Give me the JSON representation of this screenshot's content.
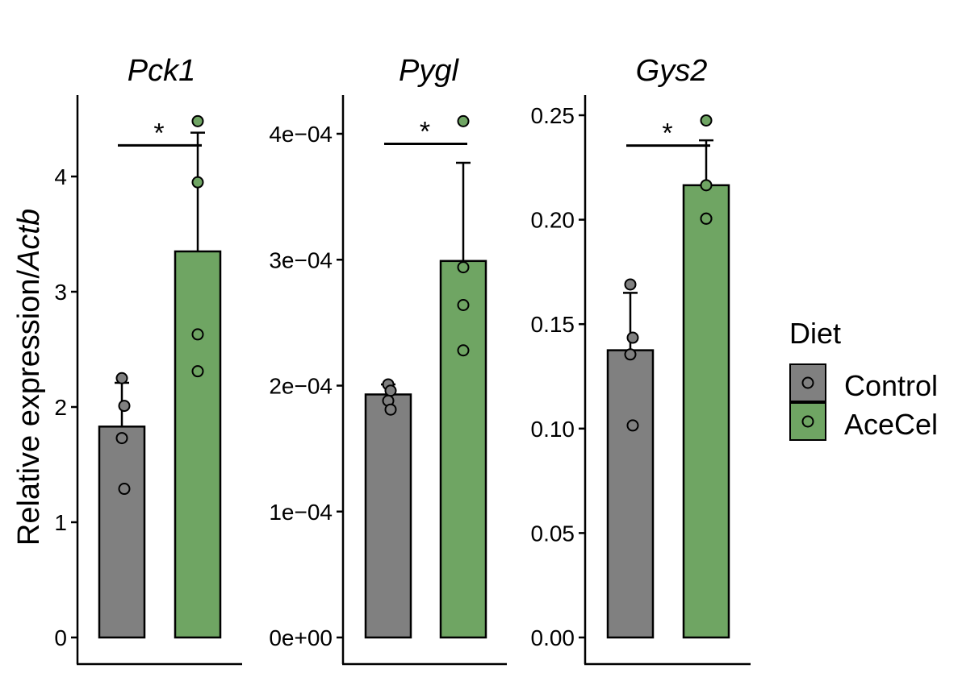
{
  "y_axis_label": "Relative expression/",
  "y_axis_label_italic": "Actb",
  "legend": {
    "title": "Diet",
    "entries": [
      {
        "label": "Control",
        "color": "#808080"
      },
      {
        "label": "AceCel",
        "color": "#6fa563"
      }
    ]
  },
  "significance_label": "*",
  "chart_data": [
    {
      "type": "bar",
      "title": "Pck1",
      "categories": [
        "Control",
        "AceCel"
      ],
      "ylim": [
        0,
        4.6
      ],
      "ticks": [
        0,
        1,
        2,
        3,
        4
      ],
      "tick_labels": [
        "0",
        "1",
        "2",
        "3",
        "4"
      ],
      "series": [
        {
          "name": "Control",
          "mean": 1.83,
          "error": 0.38,
          "points": [
            2.25,
            2.01,
            1.73,
            1.29
          ]
        },
        {
          "name": "AceCel",
          "mean": 3.35,
          "error": 1.03,
          "points": [
            4.48,
            3.95,
            2.63,
            2.31
          ]
        }
      ],
      "significance": {
        "label": "*",
        "y": 4.27
      }
    },
    {
      "type": "bar",
      "title": "Pygl",
      "categories": [
        "Control",
        "AceCel"
      ],
      "ylim": [
        0,
        0.00043
      ],
      "ticks": [
        0,
        0.0001,
        0.0002,
        0.0003,
        0.0004
      ],
      "tick_labels": [
        "0e+00",
        "1e−04",
        "2e−04",
        "3e−04",
        "4e−04"
      ],
      "series": [
        {
          "name": "Control",
          "mean": 0.000193,
          "error": 8e-06,
          "points": [
            0.000201,
            0.000196,
            0.000188,
            0.000181
          ]
        },
        {
          "name": "AceCel",
          "mean": 0.000299,
          "error": 7.8e-05,
          "points": [
            0.00041,
            0.000294,
            0.000264,
            0.000228
          ]
        }
      ],
      "significance": {
        "label": "*",
        "y": 0.000392
      }
    },
    {
      "type": "bar",
      "title": "Gys2",
      "categories": [
        "Control",
        "AceCel"
      ],
      "ylim": [
        0,
        0.26
      ],
      "ticks": [
        0,
        0.05,
        0.1,
        0.15,
        0.2,
        0.25
      ],
      "tick_labels": [
        "0.00",
        "0.05",
        "0.10",
        "0.15",
        "0.20",
        "0.25"
      ],
      "series": [
        {
          "name": "Control",
          "mean": 0.1375,
          "error": 0.0275,
          "points": [
            0.169,
            0.1435,
            0.1355,
            0.1015
          ]
        },
        {
          "name": "AceCel",
          "mean": 0.2165,
          "error": 0.0215,
          "points": [
            0.2475,
            0.2165,
            0.2005,
            0.2005
          ]
        }
      ],
      "significance": {
        "label": "*",
        "y": 0.2355
      }
    }
  ]
}
